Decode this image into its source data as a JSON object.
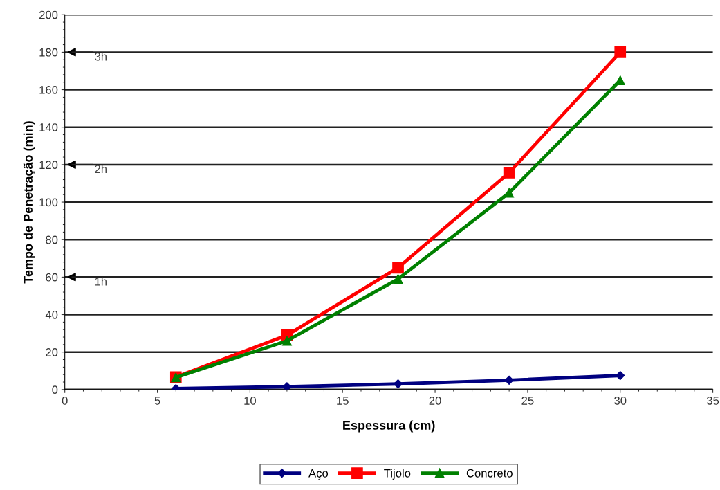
{
  "chart_data": {
    "type": "line",
    "xlabel": "Espessura (cm)",
    "ylabel": "Tempo de Penetração (min)",
    "x": [
      6,
      12,
      18,
      24,
      30
    ],
    "series": [
      {
        "name": "Aço",
        "color": "#000080",
        "values": [
          0.5,
          1.5,
          3,
          5,
          7.5
        ],
        "marker": "diamond"
      },
      {
        "name": "Tijolo",
        "color": "#ff0000",
        "values": [
          6.7,
          29,
          65,
          115.7,
          180
        ],
        "marker": "square"
      },
      {
        "name": "Concreto",
        "color": "#008000",
        "values": [
          6.5,
          26,
          59,
          105,
          165
        ],
        "marker": "triangle"
      }
    ],
    "xlim": [
      0,
      35
    ],
    "xticks": [
      0,
      5,
      10,
      15,
      20,
      25,
      30,
      35
    ],
    "ylim": [
      0,
      200
    ],
    "yticks": [
      0,
      20,
      40,
      60,
      80,
      100,
      120,
      140,
      160,
      180,
      200
    ],
    "grid": "y",
    "legend": "bottom",
    "line_style": "solid",
    "ref_lines": [
      {
        "axis": "y",
        "value": 180,
        "label": "3h",
        "color": "#222222"
      },
      {
        "axis": "y",
        "value": 120,
        "label": "2h",
        "color": "#222222"
      },
      {
        "axis": "y",
        "value": 60,
        "label": "1h",
        "color": "#222222"
      }
    ]
  }
}
